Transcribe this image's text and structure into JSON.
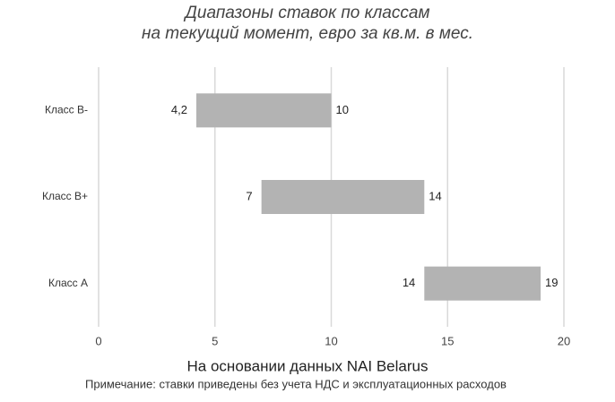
{
  "chart_data": {
    "type": "range_bar",
    "title": [
      "Диапазоны ставок по классам",
      "на текущий момент, евро за кв.м. в мес."
    ],
    "categories": [
      "Класс B-",
      "Класс B+",
      "Класс A"
    ],
    "low": {
      "values": [
        4.2,
        7,
        14
      ],
      "value_labels": [
        "4,2",
        "7",
        "14"
      ]
    },
    "high": {
      "values": [
        10,
        14,
        19
      ]
    },
    "color": "#b3b3b3",
    "xlim": [
      0,
      20
    ],
    "xticks": [
      0,
      5,
      10,
      15,
      20
    ],
    "grid": true,
    "source": "На основании данных NAI Belarus",
    "note": "Примечание: ставки приведены без учета НДС и эксплуатационных расходов"
  }
}
